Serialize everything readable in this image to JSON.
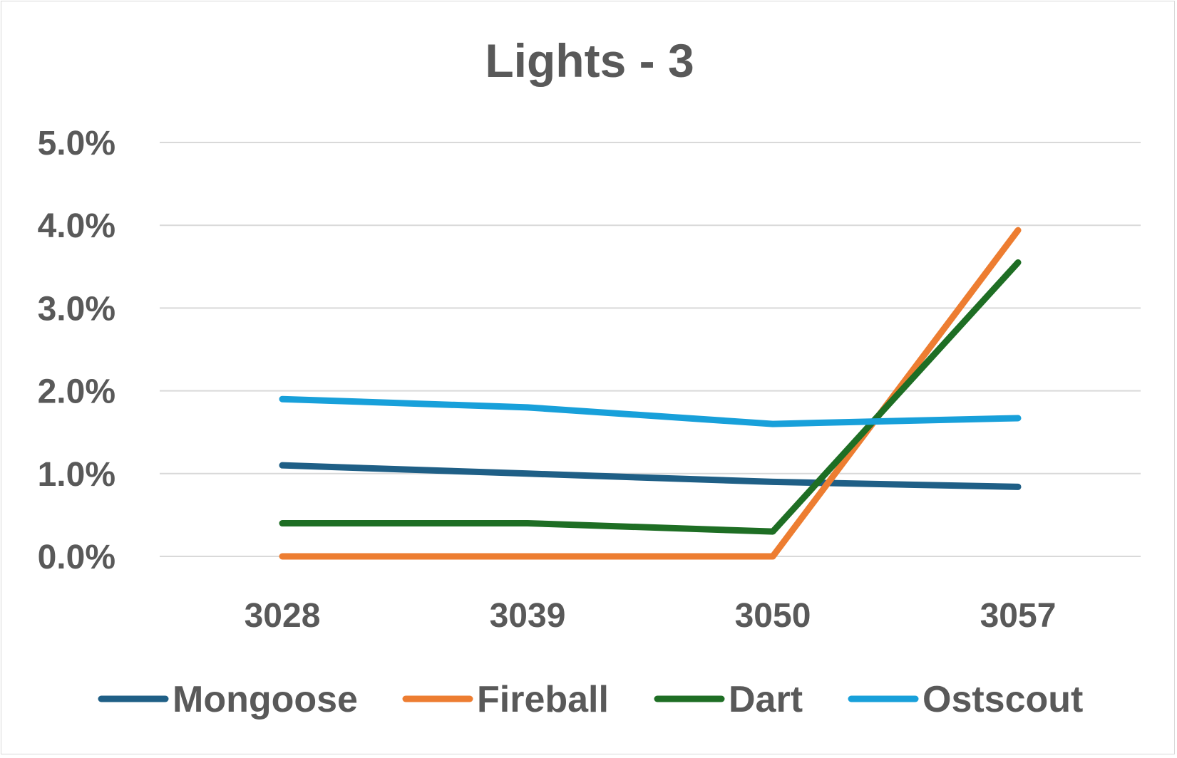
{
  "chart_data": {
    "type": "line",
    "title": "Lights - 3",
    "xlabel": "",
    "ylabel": "",
    "categories": [
      "3028",
      "3039",
      "3050",
      "3057"
    ],
    "y_ticks": [
      "0.0%",
      "1.0%",
      "2.0%",
      "3.0%",
      "4.0%",
      "5.0%"
    ],
    "ylim": [
      0,
      5
    ],
    "y_unit": "%",
    "grid": "horizontal",
    "legend_position": "bottom",
    "series": [
      {
        "name": "Mongoose",
        "color": "#1f5f86",
        "values": [
          1.1,
          1.0,
          0.9,
          0.84
        ]
      },
      {
        "name": "Fireball",
        "color": "#ed7d31",
        "values": [
          0.0,
          0.0,
          0.0,
          3.94
        ]
      },
      {
        "name": "Dart",
        "color": "#1e6e24",
        "values": [
          0.4,
          0.4,
          0.3,
          3.55
        ]
      },
      {
        "name": "Ostscout",
        "color": "#18a0da",
        "values": [
          1.9,
          1.8,
          1.6,
          1.67
        ]
      }
    ]
  }
}
